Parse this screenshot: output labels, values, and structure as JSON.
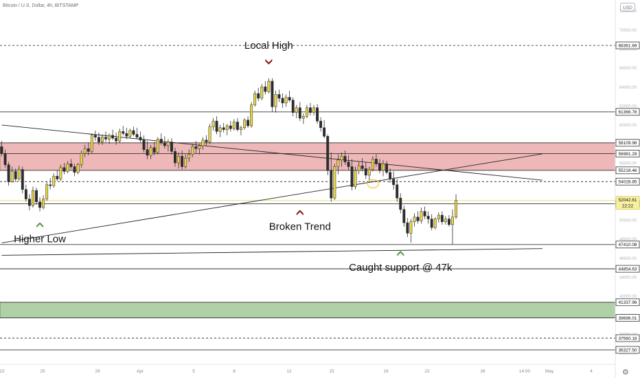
{
  "header": {
    "symbol_line": "Bitcoin / U.S. Dollar, 4h, BITSTAMP",
    "currency": "USD"
  },
  "colors": {
    "up": "#e8d44a",
    "down": "#2c2c2c",
    "wick": "#2c2c2c",
    "resistance_zone": "#e79a9a",
    "support_zone": "#8fbe83",
    "arrow_red": "#8b1a1a",
    "arrow_green": "#5b9a4a",
    "current_price_line": "#e8e072"
  },
  "chart_data": {
    "type": "candlestick",
    "symbol": "BTCUSD",
    "timeframe": "4h",
    "exchange": "BITSTAMP",
    "ylim": [
      35500,
      72500
    ],
    "y_ticks": [
      36000,
      38000,
      40000,
      42000,
      44000,
      46000,
      48000,
      50000,
      52000,
      54000,
      56000,
      58000,
      60000,
      62000,
      64000,
      66000,
      68000,
      70000,
      72000
    ],
    "x_tick_labels": [
      "22",
      "25",
      "29",
      "Apr",
      "5",
      "8",
      "12",
      "15",
      "19",
      "22",
      "26",
      "14:00",
      "May",
      "4"
    ],
    "price_levels": [
      {
        "price": 68361.69,
        "label": "68361.69",
        "style": "dashed"
      },
      {
        "price": 61366.78,
        "label": "61366.78",
        "style": "solid"
      },
      {
        "price": 58109.96,
        "label": "58109.96",
        "style": "solid"
      },
      {
        "price": 56981.29,
        "label": "56981.29",
        "style": "solid"
      },
      {
        "price": 55218.46,
        "label": "55218.46",
        "style": "solid"
      },
      {
        "price": 54028.85,
        "label": "54028.85",
        "style": "dashed"
      },
      {
        "price": 51689.0,
        "label": "51689.00",
        "style": "solid"
      },
      {
        "price": 47410.08,
        "label": "47410.08",
        "style": "solid"
      },
      {
        "price": 44854.63,
        "label": "44854.63",
        "style": "solid"
      },
      {
        "price": 41337.96,
        "label": "41337.96",
        "style": "solid"
      },
      {
        "price": 39696.01,
        "label": "39696.01",
        "style": "solid"
      },
      {
        "price": 37560.18,
        "label": "37560.18",
        "style": "dashed"
      },
      {
        "price": 36327.5,
        "label": "36327.50",
        "style": "solid"
      }
    ],
    "current_price": {
      "price": 52042.61,
      "label": "52042.61",
      "countdown": "22:22"
    },
    "zones": [
      {
        "name": "resistance",
        "from": 55218.46,
        "to": 58109.96
      },
      {
        "name": "support",
        "from": 39696.01,
        "to": 41337.96
      }
    ],
    "trendlines": [
      {
        "from_bar": 0,
        "from_price": 59980,
        "to_bar": 148,
        "to_price": 54180
      },
      {
        "from_bar": 0,
        "from_price": 47580,
        "to_bar": 148,
        "to_price": 56950
      },
      {
        "from_bar": 0,
        "from_price": 46280,
        "to_bar": 148,
        "to_price": 46980
      }
    ],
    "annotations": [
      {
        "text": "Local High",
        "bar": 77,
        "price": 67000,
        "arrow": "down",
        "arrow_color": "red"
      },
      {
        "text": "Higher Low",
        "bar": 11,
        "price": 49100,
        "arrow": "up",
        "arrow_color": "green"
      },
      {
        "text": "Broken Trend",
        "bar": 86,
        "price": 50400,
        "arrow": "up",
        "arrow_color": "red"
      },
      {
        "text": "Caught support @ 47k",
        "bar": 115,
        "price": 46100,
        "arrow": "up",
        "arrow_color": "green"
      }
    ],
    "candles": [
      [
        57700,
        58300,
        56700,
        57000
      ],
      [
        57000,
        57400,
        55500,
        55800
      ],
      [
        55800,
        56100,
        53600,
        54000
      ],
      [
        54000,
        55600,
        53900,
        55100
      ],
      [
        55100,
        55400,
        54000,
        54300
      ],
      [
        54300,
        55700,
        54100,
        55300
      ],
      [
        55300,
        55600,
        52800,
        53200
      ],
      [
        53200,
        53700,
        51900,
        52200
      ],
      [
        52200,
        52700,
        51000,
        51500
      ],
      [
        51500,
        53500,
        51300,
        53100
      ],
      [
        53100,
        53400,
        51600,
        51900
      ],
      [
        51900,
        52400,
        50900,
        51300
      ],
      [
        51300,
        52600,
        51100,
        52200
      ],
      [
        52200,
        54000,
        52000,
        53700
      ],
      [
        53700,
        54400,
        53200,
        53600
      ],
      [
        53600,
        54900,
        53400,
        54600
      ],
      [
        54600,
        55200,
        54100,
        54300
      ],
      [
        54300,
        55800,
        54100,
        55500
      ],
      [
        55500,
        56000,
        54800,
        55100
      ],
      [
        55100,
        56200,
        54900,
        55900
      ],
      [
        55900,
        56400,
        55400,
        55600
      ],
      [
        55600,
        55900,
        54600,
        55000
      ],
      [
        55000,
        56000,
        54800,
        55800
      ],
      [
        55800,
        57300,
        55500,
        57000
      ],
      [
        57000,
        57900,
        56600,
        57500
      ],
      [
        57500,
        58100,
        56800,
        57200
      ],
      [
        57200,
        59100,
        57000,
        58900
      ],
      [
        58900,
        59400,
        58300,
        58700
      ],
      [
        58700,
        59200,
        57900,
        58200
      ],
      [
        58200,
        59000,
        57900,
        58700
      ],
      [
        58700,
        59300,
        58200,
        58500
      ],
      [
        58500,
        59100,
        58000,
        58900
      ],
      [
        58900,
        59500,
        58400,
        58600
      ],
      [
        58600,
        59200,
        57900,
        58300
      ],
      [
        58300,
        59600,
        58100,
        59300
      ],
      [
        59300,
        59900,
        58900,
        59100
      ],
      [
        59100,
        59700,
        58500,
        58800
      ],
      [
        58800,
        59600,
        58600,
        59400
      ],
      [
        59400,
        59800,
        58800,
        59000
      ],
      [
        59000,
        59700,
        58500,
        58700
      ],
      [
        58700,
        59300,
        58200,
        58400
      ],
      [
        58400,
        58900,
        57100,
        57400
      ],
      [
        57400,
        58300,
        56400,
        56800
      ],
      [
        56800,
        57900,
        56400,
        57600
      ],
      [
        57600,
        58200,
        56800,
        57100
      ],
      [
        57100,
        58700,
        56900,
        58500
      ],
      [
        58500,
        59100,
        57900,
        58100
      ],
      [
        58100,
        58800,
        57500,
        57800
      ],
      [
        57800,
        58500,
        57200,
        58200
      ],
      [
        58200,
        58600,
        56900,
        57200
      ],
      [
        57200,
        57600,
        55600,
        56000
      ],
      [
        56000,
        57100,
        55400,
        56700
      ],
      [
        56700,
        57300,
        55300,
        55600
      ],
      [
        55600,
        56900,
        55400,
        56500
      ],
      [
        56500,
        57400,
        56100,
        56900
      ],
      [
        56900,
        58000,
        56600,
        57700
      ],
      [
        57700,
        58300,
        57000,
        57500
      ],
      [
        57500,
        58000,
        56900,
        57800
      ],
      [
        57800,
        58700,
        57400,
        58400
      ],
      [
        58400,
        58900,
        57800,
        58200
      ],
      [
        58200,
        60100,
        58000,
        59800
      ],
      [
        59800,
        60700,
        59400,
        60400
      ],
      [
        60400,
        60900,
        59000,
        59300
      ],
      [
        59300,
        60000,
        58700,
        59700
      ],
      [
        59700,
        60200,
        59200,
        59500
      ],
      [
        59500,
        60100,
        58900,
        59900
      ],
      [
        59900,
        60400,
        59300,
        59600
      ],
      [
        59600,
        60600,
        59400,
        60300
      ],
      [
        60300,
        60700,
        59300,
        59500
      ],
      [
        59500,
        59900,
        58900,
        59700
      ],
      [
        59700,
        60700,
        59500,
        60500
      ],
      [
        60500,
        60900,
        59700,
        59900
      ],
      [
        59900,
        62400,
        59700,
        62100
      ],
      [
        62100,
        63600,
        61900,
        63300
      ],
      [
        63300,
        63900,
        62500,
        62800
      ],
      [
        62800,
        64300,
        62600,
        64000
      ],
      [
        64000,
        64600,
        63200,
        63500
      ],
      [
        63500,
        64900,
        63300,
        64600
      ],
      [
        64600,
        64900,
        61400,
        61900
      ],
      [
        61900,
        63600,
        61300,
        63200
      ],
      [
        63200,
        63700,
        62400,
        62800
      ],
      [
        62800,
        63300,
        61800,
        62300
      ],
      [
        62300,
        63200,
        61900,
        62900
      ],
      [
        62900,
        63600,
        62400,
        62600
      ],
      [
        62600,
        62900,
        60900,
        61300
      ],
      [
        61300,
        62100,
        60700,
        61800
      ],
      [
        61800,
        62400,
        60400,
        60700
      ],
      [
        60700,
        61200,
        60100,
        60900
      ],
      [
        60900,
        62100,
        60700,
        61800
      ],
      [
        61800,
        62300,
        61000,
        61300
      ],
      [
        61300,
        62100,
        61000,
        61800
      ],
      [
        61800,
        62200,
        60100,
        60400
      ],
      [
        60400,
        60800,
        59300,
        59700
      ],
      [
        59700,
        60500,
        58600,
        58800
      ],
      [
        58800,
        59000,
        54700,
        55200
      ],
      [
        55200,
        57100,
        51900,
        52300
      ],
      [
        52300,
        55900,
        52100,
        55600
      ],
      [
        55600,
        56900,
        54800,
        56300
      ],
      [
        56300,
        57100,
        55600,
        56700
      ],
      [
        56700,
        57300,
        55800,
        56100
      ],
      [
        56100,
        56800,
        55200,
        55600
      ],
      [
        55600,
        56400,
        53100,
        53500
      ],
      [
        53500,
        55600,
        53200,
        55200
      ],
      [
        55200,
        56100,
        54800,
        55700
      ],
      [
        55700,
        56500,
        55100,
        55400
      ],
      [
        55400,
        56100,
        54300,
        54700
      ],
      [
        54700,
        55600,
        53900,
        55300
      ],
      [
        55300,
        56700,
        55100,
        56400
      ],
      [
        56400,
        56900,
        55600,
        55900
      ],
      [
        55900,
        56400,
        54900,
        55200
      ],
      [
        55200,
        56300,
        54600,
        55900
      ],
      [
        55900,
        56200,
        54800,
        55000
      ],
      [
        55000,
        55400,
        53900,
        54300
      ],
      [
        54300,
        55100,
        53200,
        53700
      ],
      [
        53700,
        54300,
        51900,
        52300
      ],
      [
        52300,
        52800,
        50700,
        51100
      ],
      [
        51100,
        51500,
        49300,
        49700
      ],
      [
        49700,
        50200,
        48200,
        48600
      ],
      [
        48600,
        50100,
        47600,
        49800
      ],
      [
        49800,
        50700,
        49300,
        50300
      ],
      [
        50300,
        50900,
        49600,
        49900
      ],
      [
        49900,
        51300,
        49600,
        50900
      ],
      [
        50900,
        51400,
        50100,
        50400
      ],
      [
        50400,
        50900,
        49600,
        50100
      ],
      [
        50100,
        50600,
        48900,
        49200
      ],
      [
        49200,
        50300,
        49000,
        50100
      ],
      [
        50100,
        50800,
        49700,
        50500
      ],
      [
        50500,
        50900,
        49500,
        49800
      ],
      [
        49800,
        50400,
        49500,
        50100
      ],
      [
        50100,
        50500,
        49300,
        49500
      ],
      [
        49500,
        51100,
        47400,
        50300
      ],
      [
        50300,
        52700,
        50100,
        52042.61
      ]
    ]
  },
  "price_axis": {
    "tick_labels": [
      "36000.00",
      "38000.00",
      "40000.00",
      "42000.00",
      "44000.00",
      "46000.00",
      "48000.00",
      "50000.00",
      "52000.00",
      "54000.00",
      "56000.00",
      "58000.00",
      "60000.00",
      "62000.00",
      "64000.00",
      "66000.00",
      "68000.00",
      "70000.00",
      "72000.00"
    ]
  }
}
